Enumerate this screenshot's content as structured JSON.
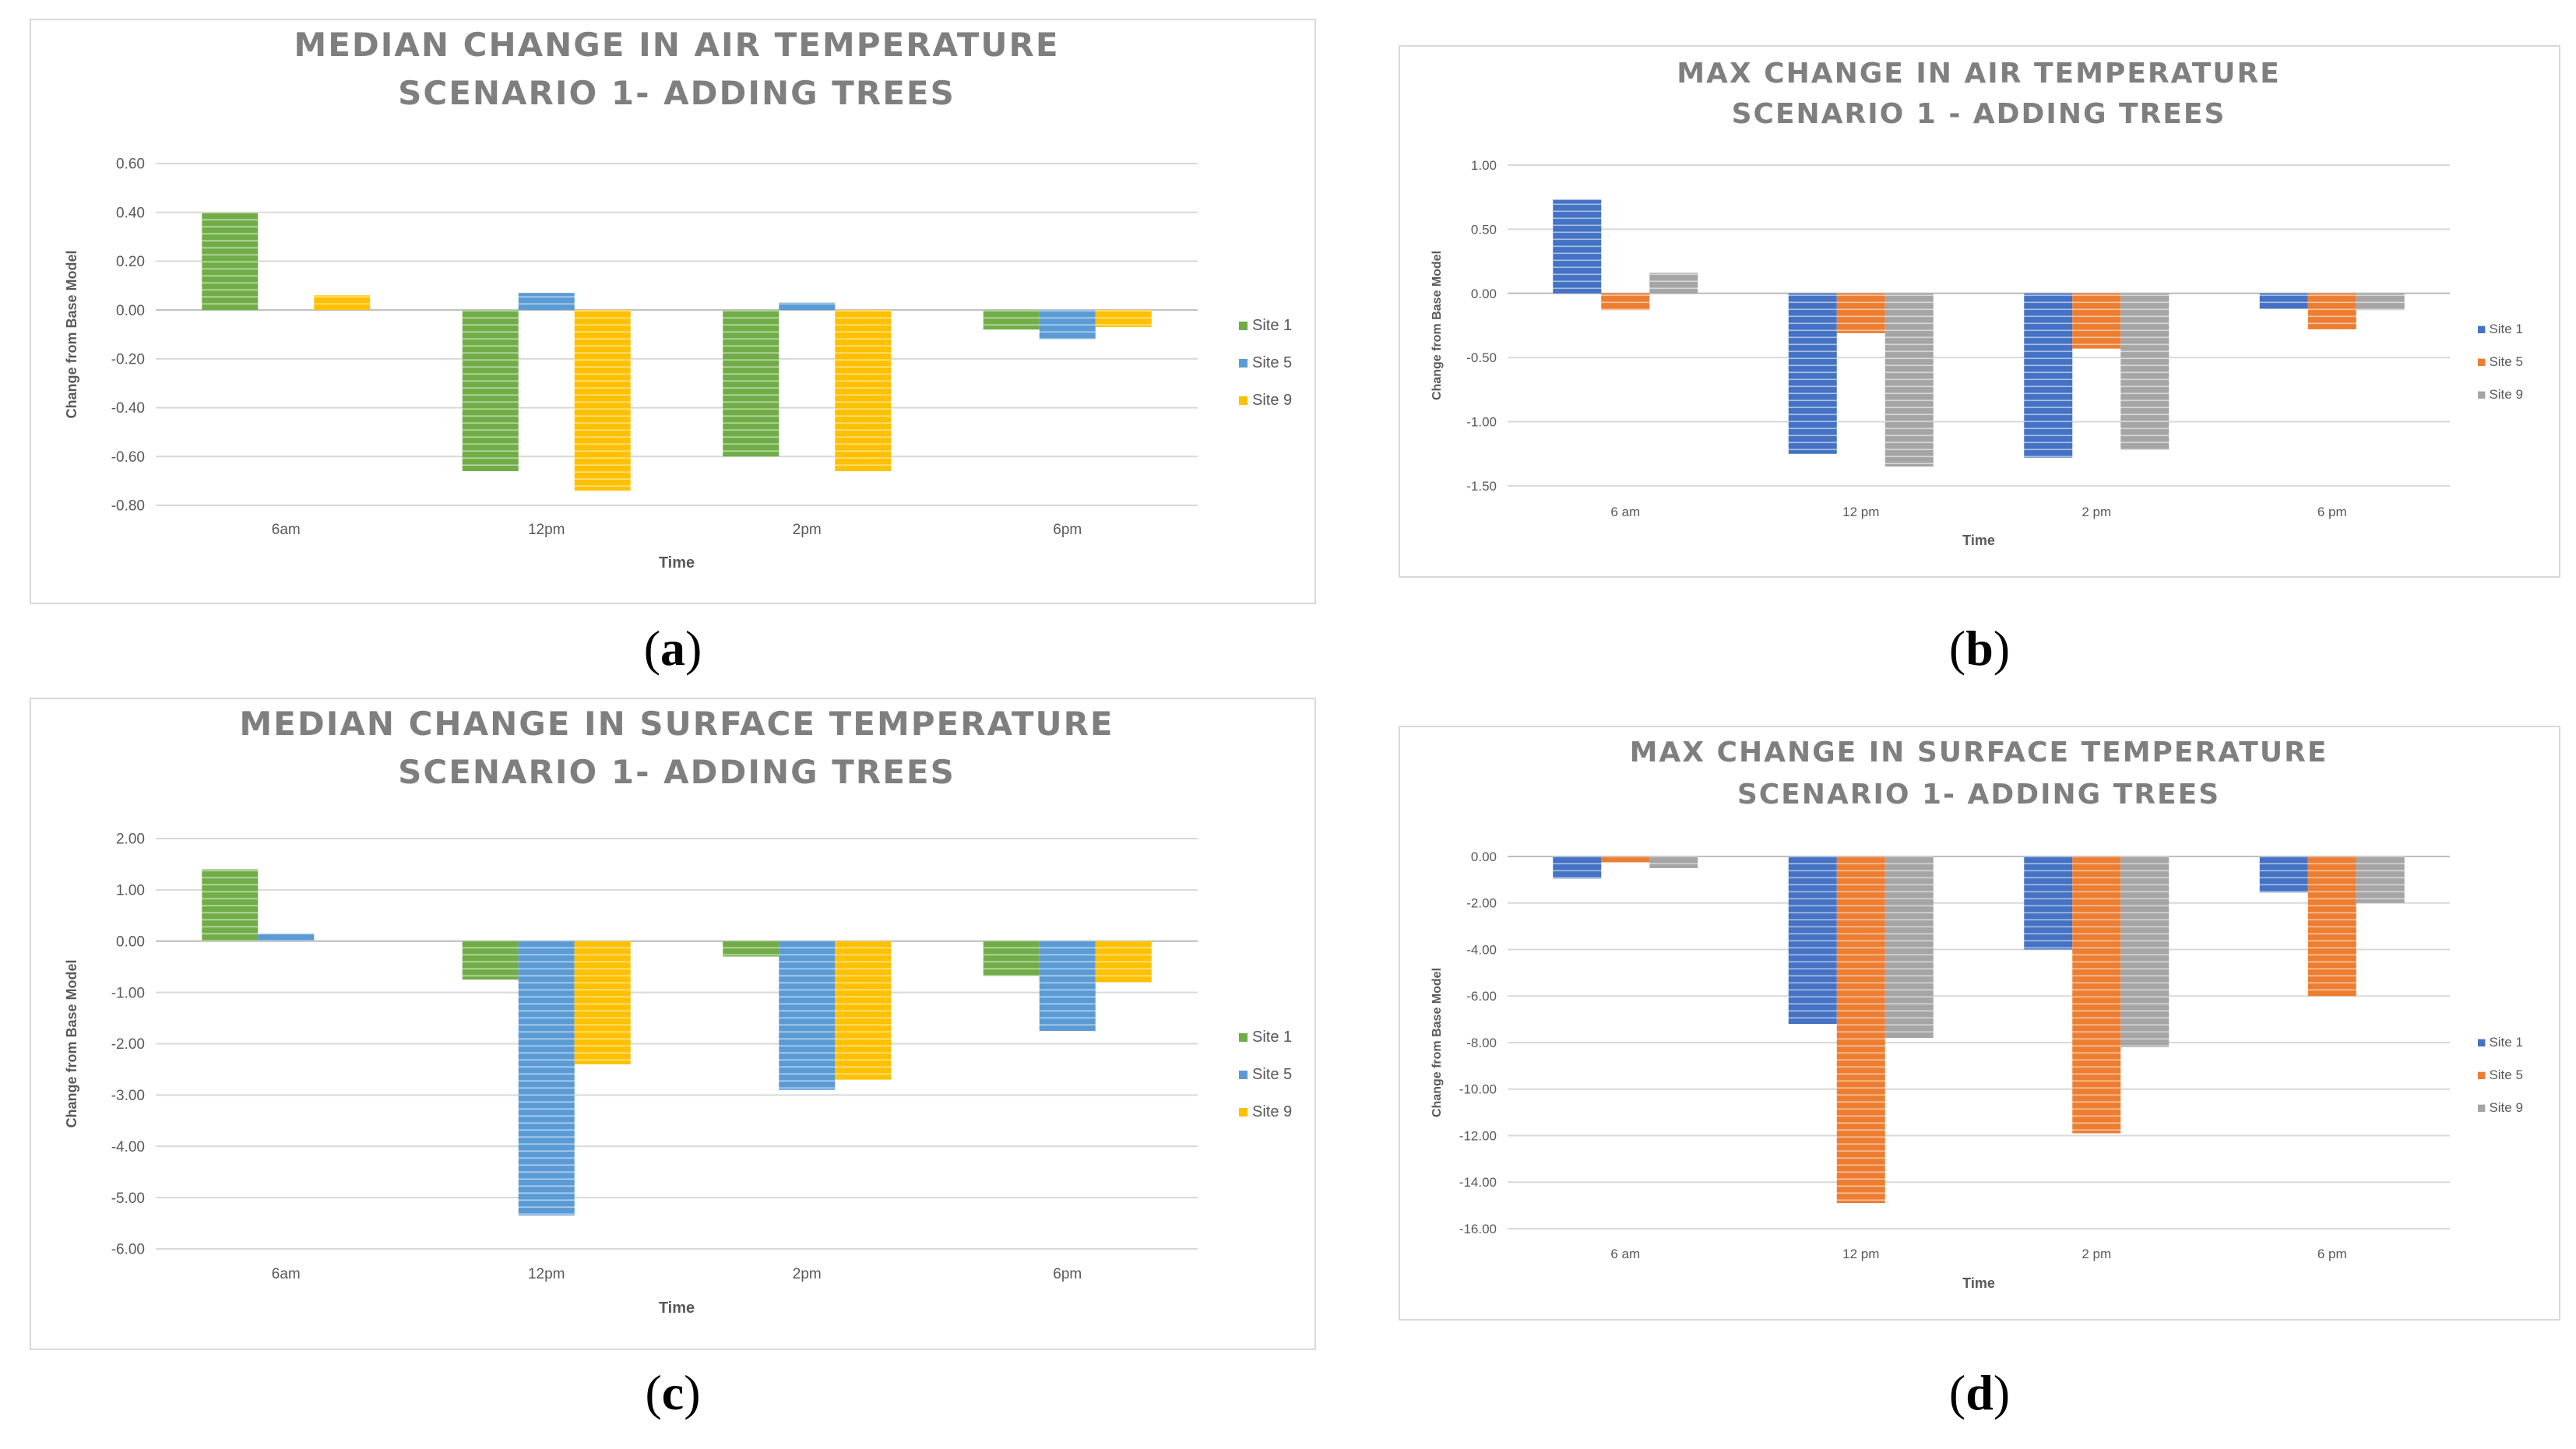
{
  "panels": [
    {
      "letter": "a",
      "chart_data": {
        "type": "bar",
        "title": [
          "MEDIAN CHANGE IN AIR TEMPERATURE",
          "SCENARIO 1- ADDING TREES"
        ],
        "xlabel": "Time",
        "ylabel": "Change from Base Model",
        "categories": [
          "6am",
          "12pm",
          "2pm",
          "6pm"
        ],
        "ylim": [
          -0.8,
          0.6
        ],
        "ystep": 0.2,
        "ydecimals": 2,
        "reversed": false,
        "legend": "right",
        "grid": true,
        "series": [
          {
            "name": "Site 1",
            "color": "#70ad47",
            "values": [
              0.4,
              -0.66,
              -0.6,
              -0.08
            ]
          },
          {
            "name": "Site 5",
            "color": "#5b9bd5",
            "values": [
              0.0,
              0.07,
              0.03,
              -0.12
            ]
          },
          {
            "name": "Site 9",
            "color": "#ffc000",
            "values": [
              0.06,
              -0.74,
              -0.66,
              -0.07
            ]
          }
        ]
      }
    },
    {
      "letter": "b",
      "chart_data": {
        "type": "bar",
        "title": [
          "MAX CHANGE IN AIR TEMPERATURE",
          "SCENARIO 1 - ADDING TREES"
        ],
        "xlabel": "Time",
        "ylabel": "Change from Base Model",
        "categories": [
          "6 am",
          "12 pm",
          "2 pm",
          "6 pm"
        ],
        "ylim": [
          -1.5,
          1.0
        ],
        "ystep": 0.5,
        "ydecimals": 2,
        "reversed": false,
        "legend": "right",
        "grid": true,
        "series": [
          {
            "name": "Site 1",
            "color": "#4472c4",
            "values": [
              0.73,
              -1.25,
              -1.28,
              -0.12
            ]
          },
          {
            "name": "Site 5",
            "color": "#ed7d31",
            "values": [
              -0.13,
              -0.31,
              -0.43,
              -0.28
            ]
          },
          {
            "name": "Site 9",
            "color": "#a5a5a5",
            "values": [
              0.16,
              -1.35,
              -1.22,
              -0.13
            ]
          }
        ]
      }
    },
    {
      "letter": "c",
      "chart_data": {
        "type": "bar",
        "title": [
          "MEDIAN CHANGE IN SURFACE TEMPERATURE",
          "SCENARIO 1- ADDING TREES"
        ],
        "xlabel": "Time",
        "ylabel": "Change from Base Model",
        "categories": [
          "6am",
          "12pm",
          "2pm",
          "6pm"
        ],
        "ylim": [
          -6,
          2
        ],
        "ystep": 1,
        "ydecimals": 2,
        "reversed": false,
        "legend": "right",
        "grid": true,
        "series": [
          {
            "name": "Site 1",
            "color": "#70ad47",
            "values": [
              1.4,
              -0.75,
              -0.3,
              -0.68
            ]
          },
          {
            "name": "Site 5",
            "color": "#5b9bd5",
            "values": [
              0.15,
              -5.35,
              -2.9,
              -1.75
            ]
          },
          {
            "name": "Site 9",
            "color": "#ffc000",
            "values": [
              0.0,
              -2.4,
              -2.7,
              -0.8
            ]
          }
        ]
      }
    },
    {
      "letter": "d",
      "chart_data": {
        "type": "bar",
        "title": [
          "MAX CHANGE IN SURFACE TEMPERATURE",
          "SCENARIO 1- ADDING TREES"
        ],
        "xlabel": "Time",
        "ylabel": "Change from Base Model",
        "categories": [
          "6 am",
          "12 pm",
          "2 pm",
          "6 pm"
        ],
        "ylim": [
          -16,
          0
        ],
        "ystep": 2,
        "ydecimals": 2,
        "reversed": true,
        "legend": "right",
        "grid": true,
        "series": [
          {
            "name": "Site 1",
            "color": "#4472c4",
            "values": [
              -0.95,
              -7.2,
              -4.0,
              -1.55
            ]
          },
          {
            "name": "Site 5",
            "color": "#ed7d31",
            "values": [
              -0.25,
              -14.9,
              -11.9,
              -6.0
            ]
          },
          {
            "name": "Site 9",
            "color": "#a5a5a5",
            "values": [
              -0.5,
              -7.8,
              -8.2,
              -2.0
            ]
          }
        ]
      }
    }
  ]
}
